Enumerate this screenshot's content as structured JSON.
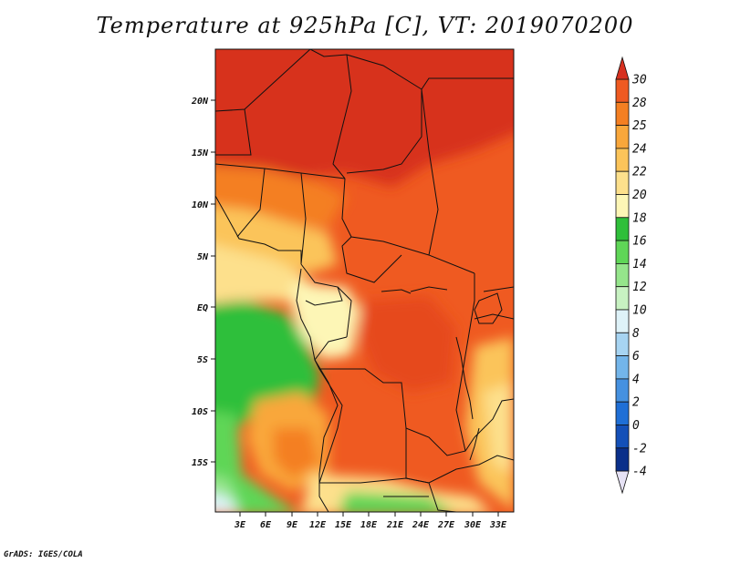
{
  "title": "Temperature at 925hPa [C], VT: 2019070200",
  "credit": "GrADS: IGES/COLA",
  "lat_labels": [
    "20N",
    "15N",
    "10N",
    "5N",
    "EQ",
    "5S",
    "10S",
    "15S"
  ],
  "lon_labels": [
    "3E",
    "6E",
    "9E",
    "12E",
    "15E",
    "18E",
    "21E",
    "24E",
    "27E",
    "30E",
    "33E"
  ],
  "colorbar": {
    "labels": [
      "30",
      "28",
      "25",
      "24",
      "22",
      "20",
      "18",
      "16",
      "14",
      "12",
      "10",
      "8",
      "6",
      "4",
      "2",
      "0",
      "-2",
      "-4"
    ],
    "colors": [
      "#d7301f",
      "#ef5a21",
      "#f47f22",
      "#f9a73b",
      "#fbc45a",
      "#fde08c",
      "#fdf6b6",
      "#2fbf3a",
      "#5fd657",
      "#95e58b",
      "#c8f2c2",
      "#def2f8",
      "#a7d4f2",
      "#73b5ea",
      "#4591e0",
      "#1f6fd6",
      "#1450b8",
      "#0a2f8a",
      "#050a5a"
    ]
  }
}
